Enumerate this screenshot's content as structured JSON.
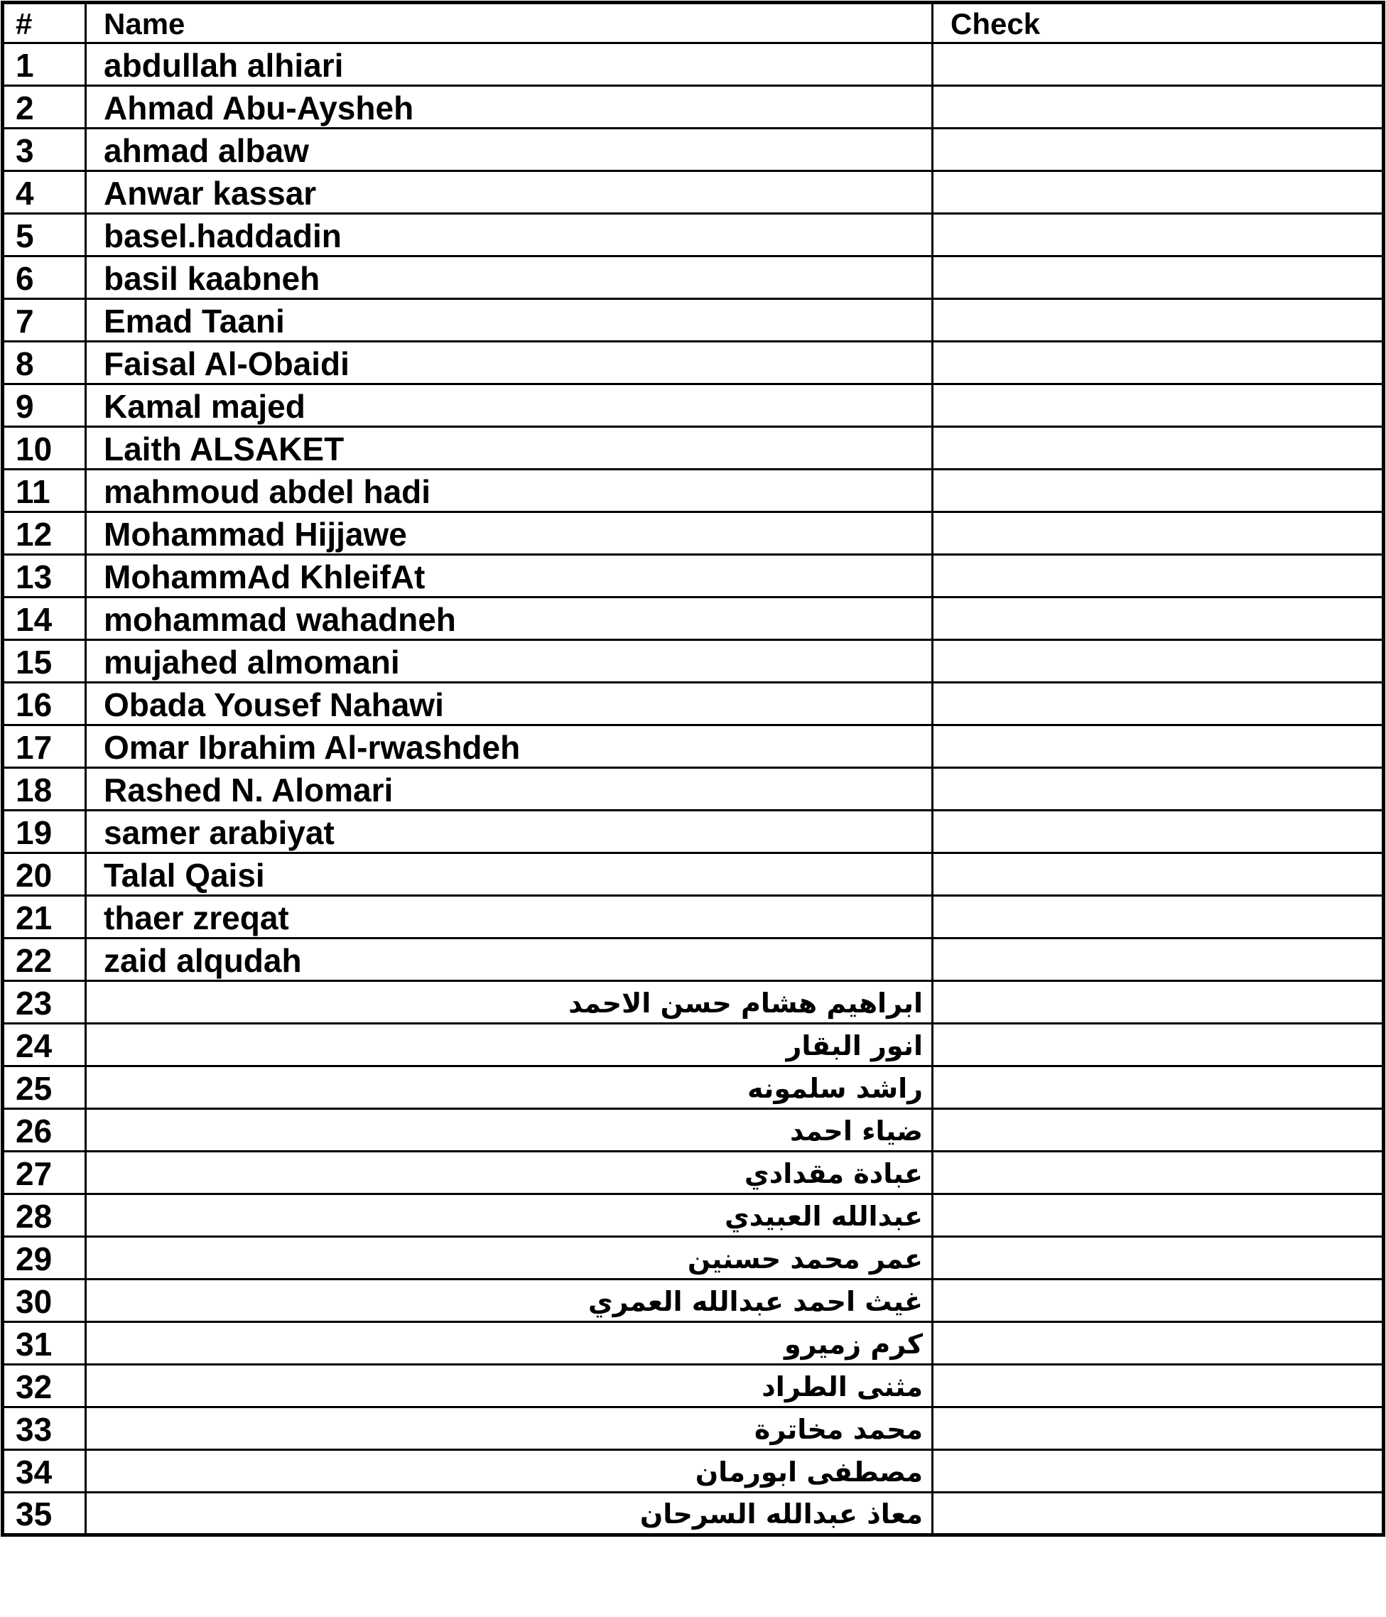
{
  "document": {
    "table": {
      "columns": {
        "num": "#",
        "name": "Name",
        "check": "Check"
      },
      "rows": [
        {
          "num": "1",
          "name": "abdullah alhiari",
          "lang": "en"
        },
        {
          "num": "2",
          "name": "Ahmad Abu-Aysheh",
          "lang": "en"
        },
        {
          "num": "3",
          "name": "ahmad albaw",
          "lang": "en"
        },
        {
          "num": "4",
          "name": "Anwar kassar",
          "lang": "en"
        },
        {
          "num": "5",
          "name": "basel.haddadin",
          "lang": "en"
        },
        {
          "num": "6",
          "name": "basil kaabneh",
          "lang": "en"
        },
        {
          "num": "7",
          "name": "Emad Taani",
          "lang": "en"
        },
        {
          "num": "8",
          "name": "Faisal Al-Obaidi",
          "lang": "en"
        },
        {
          "num": "9",
          "name": "Kamal majed",
          "lang": "en"
        },
        {
          "num": "10",
          "name": "Laith ALSAKET",
          "lang": "en"
        },
        {
          "num": "11",
          "name": "mahmoud abdel hadi",
          "lang": "en"
        },
        {
          "num": "12",
          "name": "Mohammad Hijjawe",
          "lang": "en"
        },
        {
          "num": "13",
          "name": "MohammAd KhleifAt",
          "lang": "en"
        },
        {
          "num": "14",
          "name": "mohammad wahadneh",
          "lang": "en"
        },
        {
          "num": "15",
          "name": "mujahed almomani",
          "lang": "en"
        },
        {
          "num": "16",
          "name": "Obada Yousef Nahawi",
          "lang": "en"
        },
        {
          "num": "17",
          "name": "Omar Ibrahim Al-rwashdeh",
          "lang": "en"
        },
        {
          "num": "18",
          "name": "Rashed N. Alomari",
          "lang": "en"
        },
        {
          "num": "19",
          "name": "samer arabiyat",
          "lang": "en"
        },
        {
          "num": "20",
          "name": "Talal Qaisi",
          "lang": "en"
        },
        {
          "num": "21",
          "name": "thaer zreqat",
          "lang": "en"
        },
        {
          "num": "22",
          "name": "zaid alqudah",
          "lang": "en"
        },
        {
          "num": "23",
          "name": "ابراهيم هشام حسن الاحمد",
          "lang": "ar"
        },
        {
          "num": "24",
          "name": "انور البقار",
          "lang": "ar"
        },
        {
          "num": "25",
          "name": "راشد سلمونه",
          "lang": "ar"
        },
        {
          "num": "26",
          "name": "ضياء احمد",
          "lang": "ar"
        },
        {
          "num": "27",
          "name": "عبادة مقدادي",
          "lang": "ar"
        },
        {
          "num": "28",
          "name": "عبدالله العبيدي",
          "lang": "ar"
        },
        {
          "num": "29",
          "name": "عمر محمد حسنين",
          "lang": "ar"
        },
        {
          "num": "30",
          "name": "غيث احمد عبدالله العمري",
          "lang": "ar"
        },
        {
          "num": "31",
          "name": "كرم زميرو",
          "lang": "ar"
        },
        {
          "num": "32",
          "name": "مثنى الطراد",
          "lang": "ar"
        },
        {
          "num": "33",
          "name": "محمد مخاترة",
          "lang": "ar"
        },
        {
          "num": "34",
          "name": "مصطفى ابورمان",
          "lang": "ar"
        },
        {
          "num": "35",
          "name": "معاذ عبدالله السرحان",
          "lang": "ar"
        }
      ]
    },
    "colors": {
      "text": "#000000",
      "border": "#000000",
      "background": "#ffffff"
    }
  }
}
